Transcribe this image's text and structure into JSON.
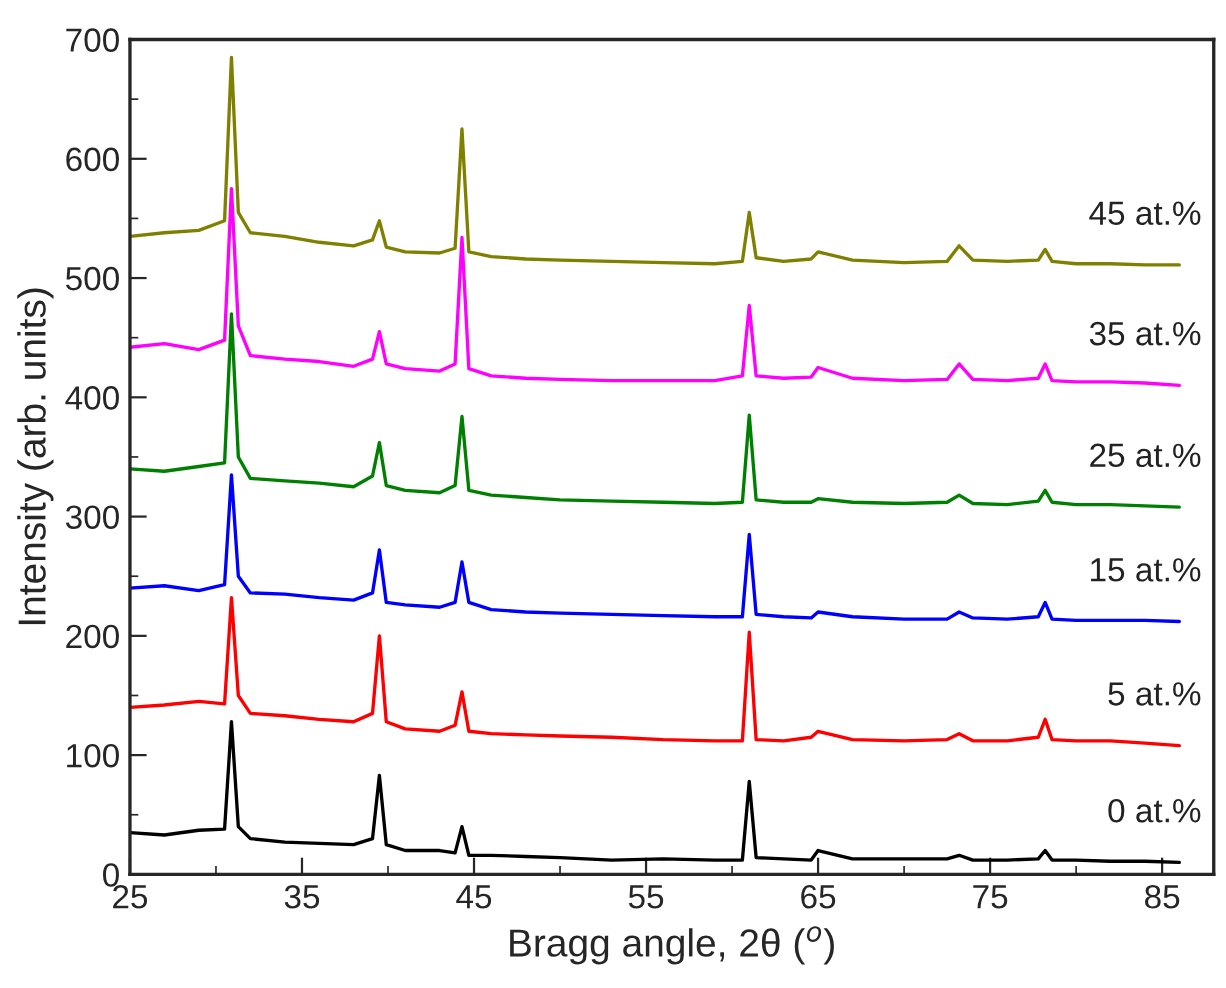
{
  "chart_data": {
    "type": "line",
    "xlabel": "Bragg angle, 2θ ($^{o}$)",
    "ylabel": "Intensity (arb. units)",
    "x": [
      25,
      27,
      29,
      30.5,
      30.9,
      31.3,
      32,
      34,
      36,
      38,
      39.1,
      39.5,
      39.9,
      41,
      43,
      43.9,
      44.3,
      44.7,
      46,
      48,
      50,
      53,
      56,
      59,
      60.6,
      61,
      61.4,
      63,
      64.6,
      65,
      67,
      70,
      72.5,
      73.2,
      74,
      76,
      77.8,
      78.2,
      78.6,
      80,
      82,
      84,
      86
    ],
    "xlim": [
      25,
      88
    ],
    "xticks": [
      25,
      35,
      45,
      55,
      65,
      75,
      85
    ],
    "ylim": [
      0,
      700
    ],
    "yticks": [
      0,
      100,
      200,
      300,
      400,
      500,
      600,
      700
    ],
    "grid": false,
    "legend": false,
    "marker": "none",
    "line_style": "solid",
    "series": [
      {
        "name": "0 at.%",
        "color": "#000000",
        "values": [
          35,
          33,
          37,
          38,
          128,
          40,
          30,
          27,
          26,
          25,
          30,
          83,
          25,
          20,
          20,
          18,
          40,
          16,
          16,
          15,
          14,
          12,
          13,
          12,
          12,
          78,
          14,
          13,
          12,
          20,
          13,
          13,
          13,
          16,
          12,
          12,
          13,
          20,
          12,
          12,
          11,
          11,
          10
        ]
      },
      {
        "name": "5 at.%",
        "color": "#ff0000",
        "values": [
          140,
          142,
          145,
          143,
          232,
          150,
          135,
          133,
          130,
          128,
          135,
          200,
          128,
          122,
          120,
          125,
          153,
          120,
          118,
          117,
          116,
          115,
          113,
          112,
          112,
          203,
          113,
          112,
          115,
          120,
          113,
          112,
          113,
          118,
          112,
          112,
          115,
          130,
          113,
          112,
          112,
          110,
          108
        ]
      },
      {
        "name": "15 at.%",
        "color": "#0000ff",
        "values": [
          240,
          242,
          238,
          243,
          335,
          250,
          236,
          235,
          232,
          230,
          236,
          272,
          228,
          226,
          224,
          228,
          262,
          228,
          222,
          220,
          219,
          218,
          217,
          216,
          216,
          285,
          218,
          216,
          215,
          220,
          216,
          214,
          214,
          220,
          215,
          214,
          216,
          228,
          214,
          213,
          213,
          213,
          212
        ]
      },
      {
        "name": "25 at.%",
        "color": "#008000",
        "values": [
          340,
          338,
          342,
          345,
          470,
          350,
          332,
          330,
          328,
          325,
          334,
          362,
          326,
          322,
          320,
          326,
          384,
          322,
          318,
          316,
          314,
          313,
          312,
          311,
          312,
          385,
          314,
          312,
          312,
          315,
          312,
          311,
          312,
          318,
          311,
          310,
          313,
          322,
          312,
          310,
          310,
          309,
          308
        ]
      },
      {
        "name": "35 at.%",
        "color": "#ff00ff",
        "values": [
          442,
          445,
          440,
          448,
          575,
          460,
          435,
          432,
          430,
          426,
          432,
          455,
          428,
          424,
          422,
          428,
          534,
          424,
          418,
          416,
          415,
          414,
          414,
          414,
          418,
          477,
          418,
          416,
          417,
          425,
          416,
          414,
          415,
          428,
          415,
          414,
          416,
          428,
          414,
          413,
          413,
          412,
          410
        ]
      },
      {
        "name": "45 at.%",
        "color": "#808000",
        "values": [
          535,
          538,
          540,
          548,
          685,
          555,
          538,
          535,
          530,
          527,
          532,
          548,
          526,
          522,
          521,
          525,
          625,
          522,
          518,
          516,
          515,
          514,
          513,
          512,
          514,
          555,
          517,
          514,
          516,
          522,
          515,
          513,
          514,
          527,
          515,
          514,
          515,
          524,
          514,
          512,
          512,
          511,
          511
        ]
      }
    ]
  }
}
